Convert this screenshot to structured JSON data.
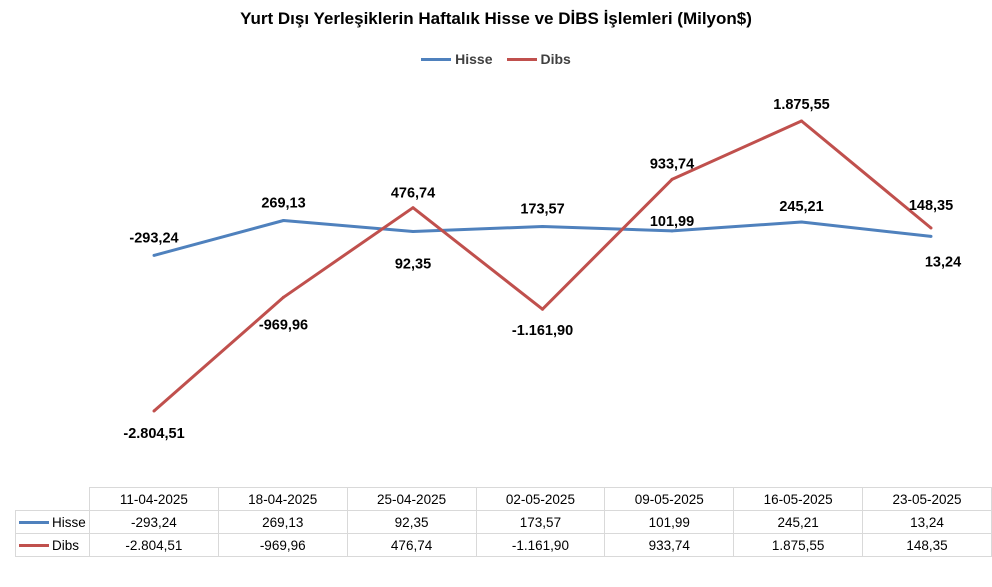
{
  "colors": {
    "hisse": "#4f81bd",
    "dibs": "#c0504d"
  },
  "chart_data": {
    "type": "line",
    "title": "Yurt Dışı Yerleşiklerin Haftalık Hisse ve DİBS İşlemleri (Milyon$)",
    "categories": [
      "11-04-2025",
      "18-04-2025",
      "25-04-2025",
      "02-05-2025",
      "09-05-2025",
      "16-05-2025",
      "23-05-2025"
    ],
    "series": [
      {
        "name": "Hisse",
        "values": [
          -293.24,
          269.13,
          92.35,
          173.57,
          101.99,
          245.21,
          13.24
        ],
        "labels": [
          "-293,24",
          "269,13",
          "92,35",
          "173,57",
          "101,99",
          "245,21",
          "13,24"
        ]
      },
      {
        "name": "Dibs",
        "values": [
          -2804.51,
          -969.96,
          476.74,
          -1161.9,
          933.74,
          1875.55,
          148.35
        ],
        "labels": [
          "-2.804,51",
          "-969,96",
          "476,74",
          "-1.161,90",
          "933,74",
          "1.875,55",
          "148,35"
        ]
      }
    ],
    "legend": "top-center",
    "grid": false,
    "data_table": true
  }
}
